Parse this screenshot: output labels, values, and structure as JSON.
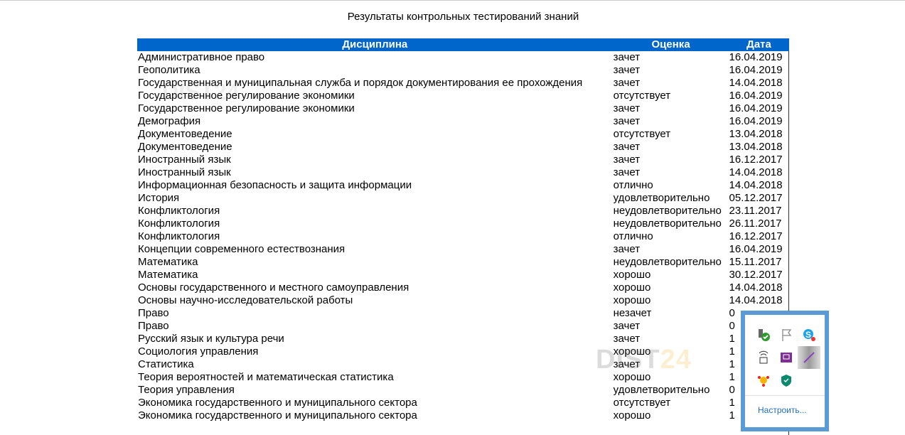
{
  "title": "Результаты контрольных тестирований знаний",
  "headers": [
    "Дисциплина",
    "Оценка",
    "Дата"
  ],
  "rows": [
    [
      "Административное право",
      "зачет",
      "16.04.2019"
    ],
    [
      "Геополитика",
      "зачет",
      "16.04.2019"
    ],
    [
      "Государственная и муниципальная служба и порядок документирования ее прохождения",
      "зачет",
      "14.04.2018"
    ],
    [
      "Государственное регулирование экономики",
      "отсутствует",
      "16.04.2019"
    ],
    [
      "Государственное регулирование экономики",
      "зачет",
      "16.04.2019"
    ],
    [
      "Демография",
      "зачет",
      "16.04.2019"
    ],
    [
      "Документоведение",
      "отсутствует",
      "13.04.2018"
    ],
    [
      "Документоведение",
      "зачет",
      "13.04.2018"
    ],
    [
      "Иностранный язык",
      "зачет",
      "16.12.2017"
    ],
    [
      "Иностранный язык",
      "зачет",
      "14.04.2018"
    ],
    [
      "Информационная безопасность и защита информации",
      "отлично",
      "14.04.2018"
    ],
    [
      "История",
      "удовлетворительно",
      "05.12.2017"
    ],
    [
      "Конфликтология",
      "неудовлетворительно",
      "23.11.2017"
    ],
    [
      "Конфликтология",
      "неудовлетворительно",
      "26.11.2017"
    ],
    [
      "Конфликтология",
      "отлично",
      "16.12.2017"
    ],
    [
      "Концепции современного естествознания",
      "зачет",
      "16.04.2019"
    ],
    [
      "Математика",
      "неудовлетворительно",
      "15.11.2017"
    ],
    [
      "Математика",
      "хорошо",
      "30.12.2017"
    ],
    [
      "Основы государственного и местного самоуправления",
      "хорошо",
      "14.04.2018"
    ],
    [
      "Основы научно-исследовательской работы",
      "хорошо",
      "14.04.2018"
    ],
    [
      "Право",
      "незачет",
      "0"
    ],
    [
      "Право",
      "зачет",
      "0"
    ],
    [
      "Русский язык и культура речи",
      "зачет",
      "1"
    ],
    [
      "Социология управления",
      "хорошо",
      "1"
    ],
    [
      "Статистика",
      "зачет",
      "1"
    ],
    [
      "Теория вероятностей и математическая статистика",
      "хорошо",
      "1"
    ],
    [
      "Теория управления",
      "удовлетворительно",
      "0"
    ],
    [
      "Экономика государственного и муниципального сектора",
      "отсутствует",
      "1"
    ],
    [
      "Экономика государственного и муниципального сектора",
      "хорошо",
      "1"
    ],
    [
      "",
      "",
      ""
    ]
  ],
  "watermark": "DIST24",
  "tray": {
    "icons": [
      "usb-safe-remove-icon",
      "action-center-flag-icon",
      "skype-icon",
      "network-adapter-icon",
      "onenote-clip-icon",
      "pen-icon",
      "yandex-disk-icon",
      "kaspersky-shield-icon"
    ],
    "customize_label": "Настроить..."
  },
  "colors": {
    "header": "#0066cc",
    "tray_border": "#5b9bd5",
    "link": "#1f6fc5"
  }
}
